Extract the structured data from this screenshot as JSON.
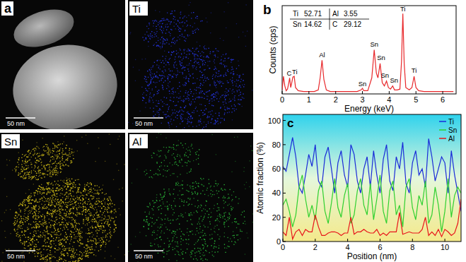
{
  "image_panels": {
    "scale_bar": "50 nm",
    "panels": [
      {
        "label": "a"
      },
      {
        "label": "Ti",
        "color": "#2a3cff"
      },
      {
        "label": "Sn",
        "color": "#e8d21a"
      },
      {
        "label": "Al",
        "color": "#30d040"
      }
    ]
  },
  "chart_data": [
    {
      "type": "line",
      "title": "b",
      "x_label": "Energy (keV)",
      "y_label": "Counts (cps)",
      "color": "#e8282b",
      "x": [
        0,
        0.05,
        0.1,
        0.15,
        0.2,
        0.25,
        0.28,
        0.32,
        0.36,
        0.4,
        0.45,
        0.5,
        0.6,
        0.8,
        1.0,
        1.2,
        1.35,
        1.42,
        1.49,
        1.56,
        1.65,
        1.8,
        2.0,
        2.4,
        2.8,
        2.95,
        3.0,
        3.05,
        3.2,
        3.35,
        3.44,
        3.52,
        3.58,
        3.66,
        3.74,
        3.82,
        3.9,
        3.97,
        4.05,
        4.13,
        4.2,
        4.3,
        4.4,
        4.46,
        4.51,
        4.56,
        4.62,
        4.75,
        4.85,
        4.93,
        5.0,
        5.1,
        5.3,
        5.6,
        6.0,
        6.4
      ],
      "values": [
        5,
        22,
        10,
        4,
        6,
        14,
        20,
        8,
        14,
        21,
        22,
        8,
        4,
        3,
        3,
        3,
        5,
        20,
        42,
        18,
        5,
        3,
        3,
        3,
        3,
        5,
        7,
        4,
        4,
        20,
        55,
        26,
        20,
        38,
        14,
        10,
        16,
        8,
        6,
        10,
        5,
        5,
        6,
        40,
        100,
        38,
        8,
        5,
        8,
        22,
        8,
        4,
        3,
        3,
        3,
        3
      ],
      "xlim": [
        0,
        6.5
      ],
      "xticks": [
        0,
        1,
        2,
        3,
        4,
        5,
        6
      ],
      "ylim": [
        0,
        110
      ],
      "tick_labels": "x",
      "grid": false,
      "annotations": [
        {
          "text": "C",
          "x": 0.26,
          "y": 23
        },
        {
          "text": "Ti",
          "x": 0.47,
          "y": 25
        },
        {
          "text": "Al",
          "x": 1.49,
          "y": 46
        },
        {
          "text": "Sn",
          "x": 3.0,
          "y": 10
        },
        {
          "text": "Sn",
          "x": 3.44,
          "y": 59
        },
        {
          "text": "Sn",
          "x": 3.7,
          "y": 42
        },
        {
          "text": "Sn",
          "x": 3.84,
          "y": 20
        },
        {
          "text": "Sn",
          "x": 4.18,
          "y": 14
        },
        {
          "text": "Ti",
          "x": 4.51,
          "y": 103
        },
        {
          "text": "Ti",
          "x": 4.93,
          "y": 26
        }
      ],
      "table": [
        [
          {
            "element": "Ti",
            "value": 52.71
          },
          {
            "element": "Al",
            "value": 3.55
          }
        ],
        [
          {
            "element": "Sn",
            "value": 14.62
          },
          {
            "element": "C",
            "value": 29.12
          }
        ]
      ]
    },
    {
      "type": "line",
      "title": "c",
      "x_label": "Position (nm)",
      "y_label": "Atomic fraction (%)",
      "x": [
        0,
        0.2,
        0.4,
        0.6,
        0.8,
        1,
        1.2,
        1.4,
        1.6,
        1.8,
        2,
        2.2,
        2.4,
        2.6,
        2.8,
        3,
        3.2,
        3.4,
        3.6,
        3.8,
        4,
        4.2,
        4.4,
        4.6,
        4.8,
        5,
        5.2,
        5.4,
        5.6,
        5.8,
        6,
        6.2,
        6.4,
        6.6,
        6.8,
        7,
        7.2,
        7.4,
        7.6,
        7.8,
        8,
        8.2,
        8.4,
        8.6,
        8.8,
        9,
        9.2,
        9.4,
        9.6,
        9.8,
        10,
        10.2,
        10.4,
        10.6,
        10.8,
        11
      ],
      "series": [
        {
          "name": "Ti",
          "color": "#1a2bd8",
          "values": [
            62,
            58,
            72,
            86,
            70,
            45,
            40,
            55,
            72,
            62,
            80,
            50,
            45,
            70,
            78,
            60,
            40,
            65,
            75,
            55,
            45,
            80,
            72,
            50,
            40,
            60,
            70,
            45,
            75,
            55,
            40,
            68,
            80,
            50,
            42,
            70,
            60,
            82,
            48,
            40,
            65,
            75,
            55,
            60,
            45,
            85,
            70,
            50,
            60,
            70,
            65,
            40,
            75,
            55,
            40,
            25
          ]
        },
        {
          "name": "Sn",
          "color": "#2fd02f",
          "values": [
            30,
            35,
            25,
            12,
            22,
            45,
            55,
            35,
            20,
            30,
            18,
            42,
            50,
            25,
            15,
            32,
            52,
            28,
            20,
            38,
            48,
            15,
            22,
            42,
            52,
            30,
            22,
            48,
            18,
            35,
            55,
            25,
            15,
            42,
            50,
            22,
            30,
            12,
            45,
            52,
            28,
            18,
            38,
            30,
            50,
            15,
            22,
            45,
            30,
            8,
            25,
            52,
            20,
            38,
            45,
            40
          ]
        },
        {
          "name": "Al",
          "color": "#e8141a",
          "values": [
            8,
            5,
            20,
            2,
            8,
            10,
            5,
            10,
            8,
            8,
            22,
            12,
            5,
            5,
            7,
            8,
            8,
            7,
            5,
            7,
            7,
            20,
            6,
            8,
            8,
            10,
            8,
            7,
            7,
            10,
            5,
            7,
            5,
            8,
            8,
            8,
            24,
            6,
            7,
            8,
            7,
            7,
            7,
            10,
            20,
            5,
            8,
            5,
            10,
            4,
            10,
            8,
            5,
            7,
            15,
            35
          ]
        }
      ],
      "xlim": [
        0,
        11
      ],
      "xticks": [
        0,
        2,
        4,
        6,
        8,
        10
      ],
      "ylim": [
        0,
        105
      ],
      "yticks": [
        0,
        20,
        40,
        60,
        80,
        100
      ],
      "legend": "top-right",
      "grid": false
    }
  ]
}
